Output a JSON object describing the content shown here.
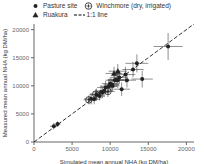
{
  "chart_data": {
    "type": "scatter",
    "xlabel": "Simulated mean annual NHA (kg DM/ha)",
    "ylabel": "Measured mean annual NHA (kg DM/ha)",
    "xlim": [
      0,
      21000
    ],
    "ylim": [
      0,
      21000
    ],
    "xticks": [
      0,
      5000,
      10000,
      15000,
      20000
    ],
    "yticks": [
      0,
      5000,
      10000,
      15000,
      20000
    ],
    "grid": false,
    "legend": "upper left",
    "series": [
      {
        "name": "Pasture site",
        "type": "scatter",
        "color": "#222222",
        "marker": "circle",
        "x": [
          2600,
          3100,
          7500,
          7900,
          8200,
          8600,
          8800,
          9000,
          9200,
          9400,
          9800,
          10000,
          10200,
          10300,
          10600,
          10800,
          11000,
          11200,
          11500,
          12000,
          12200,
          13000,
          13500,
          14200,
          17600
        ],
        "values": [
          2800,
          3200,
          7700,
          7600,
          8400,
          8200,
          8900,
          8800,
          9100,
          9700,
          9900,
          10400,
          10200,
          10000,
          11000,
          11100,
          11000,
          11500,
          9400,
          12000,
          11000,
          12900,
          14000,
          11200,
          17000
        ],
        "xerr": [
          500,
          400,
          900,
          800,
          900,
          700,
          1000,
          900,
          1000,
          1100,
          1100,
          1100,
          1000,
          900,
          1200,
          1100,
          1300,
          1100,
          1100,
          1300,
          1200,
          1400,
          1500,
          1400,
          1900
        ],
        "yerr": [
          600,
          500,
          1000,
          900,
          1100,
          800,
          1200,
          1000,
          1100,
          1200,
          1200,
          1200,
          1100,
          1000,
          1300,
          1200,
          1400,
          1200,
          1200,
          1400,
          1300,
          1400,
          1600,
          1500,
          2400
        ]
      },
      {
        "name": "Winchmore (dry, irrigated)",
        "type": "scatter",
        "color": "#222222",
        "marker": "circle_cross",
        "x": [
          7200,
          8100,
          9700
        ],
        "values": [
          7500,
          8500,
          9000
        ],
        "xerr": [
          700,
          800,
          900
        ],
        "yerr": [
          800,
          900,
          1000
        ]
      },
      {
        "name": "Ruakura",
        "type": "scatter",
        "color": "#222222",
        "marker": "triangle",
        "x": [
          10500,
          11000
        ],
        "values": [
          12200,
          12600
        ],
        "xerr": [
          1100,
          1200
        ],
        "yerr": [
          1200,
          1300
        ]
      },
      {
        "name": "1:1 line",
        "type": "line",
        "color": "#000000",
        "line_style": "dashed",
        "x": [
          0,
          21000
        ],
        "values": [
          0,
          21000
        ]
      }
    ]
  }
}
